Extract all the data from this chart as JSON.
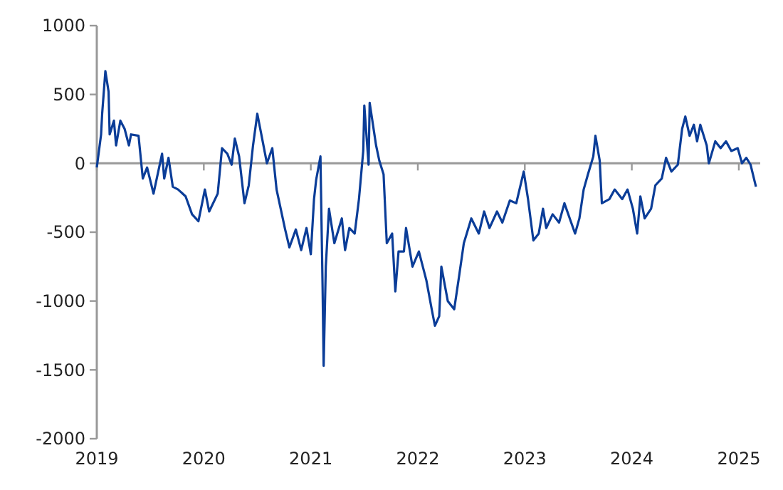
{
  "chart_data": {
    "type": "line",
    "color": "#0b3d98",
    "xlim": [
      2019,
      2025.2
    ],
    "xticks": [
      2019,
      2020,
      2021,
      2022,
      2023,
      2024,
      2025
    ],
    "ylim": [
      -2000,
      1000
    ],
    "yticks": [
      -2000,
      -1500,
      -1000,
      -500,
      0,
      500,
      1000
    ],
    "x": [
      2019.0,
      2019.04,
      2019.05,
      2019.08,
      2019.11,
      2019.12,
      2019.16,
      2019.18,
      2019.22,
      2019.26,
      2019.3,
      2019.32,
      2019.39,
      2019.43,
      2019.47,
      2019.53,
      2019.61,
      2019.63,
      2019.67,
      2019.71,
      2019.76,
      2019.83,
      2019.89,
      2019.95,
      2020.01,
      2020.05,
      2020.13,
      2020.17,
      2020.22,
      2020.26,
      2020.29,
      2020.33,
      2020.38,
      2020.42,
      2020.46,
      2020.5,
      2020.55,
      2020.59,
      2020.64,
      2020.68,
      2020.76,
      2020.8,
      2020.86,
      2020.91,
      2020.96,
      2021.0,
      2021.03,
      2021.05,
      2021.09,
      2021.11,
      2021.12,
      2021.14,
      2021.17,
      2021.22,
      2021.29,
      2021.32,
      2021.36,
      2021.41,
      2021.45,
      2021.49,
      2021.5,
      2021.54,
      2021.55,
      2021.61,
      2021.64,
      2021.68,
      2021.71,
      2021.76,
      2021.79,
      2021.82,
      2021.87,
      2021.89,
      2021.95,
      2022.01,
      2022.08,
      2022.13,
      2022.16,
      2022.2,
      2022.22,
      2022.28,
      2022.34,
      2022.38,
      2022.43,
      2022.5,
      2022.57,
      2022.62,
      2022.67,
      2022.74,
      2022.79,
      2022.86,
      2022.92,
      2022.99,
      2023.03,
      2023.08,
      2023.13,
      2023.17,
      2023.2,
      2023.26,
      2023.32,
      2023.37,
      2023.42,
      2023.47,
      2023.51,
      2023.55,
      2023.59,
      2023.64,
      2023.66,
      2023.7,
      2023.72,
      2023.79,
      2023.84,
      2023.91,
      2023.96,
      2024.01,
      2024.05,
      2024.08,
      2024.12,
      2024.18,
      2024.22,
      2024.28,
      2024.32,
      2024.37,
      2024.43,
      2024.47,
      2024.5,
      2024.54,
      2024.58,
      2024.61,
      2024.64,
      2024.7,
      2024.72,
      2024.78,
      2024.83,
      2024.88,
      2024.93,
      2024.99,
      2025.03,
      2025.07,
      2025.11,
      2025.16
    ],
    "values": [
      -30,
      210,
      360,
      670,
      520,
      210,
      310,
      130,
      310,
      250,
      130,
      210,
      200,
      -110,
      -30,
      -220,
      70,
      -110,
      40,
      -170,
      -190,
      -240,
      -370,
      -420,
      -190,
      -350,
      -220,
      110,
      70,
      -10,
      180,
      50,
      -290,
      -160,
      130,
      360,
      160,
      0,
      110,
      -190,
      -480,
      -610,
      -480,
      -630,
      -470,
      -660,
      -260,
      -120,
      50,
      -900,
      -1470,
      -750,
      -330,
      -580,
      -400,
      -630,
      -470,
      -510,
      -260,
      90,
      420,
      -10,
      440,
      130,
      20,
      -80,
      -580,
      -510,
      -930,
      -640,
      -640,
      -470,
      -750,
      -640,
      -850,
      -1060,
      -1180,
      -1110,
      -750,
      -1000,
      -1060,
      -850,
      -580,
      -400,
      -510,
      -350,
      -470,
      -350,
      -430,
      -270,
      -290,
      -60,
      -260,
      -560,
      -510,
      -330,
      -470,
      -370,
      -430,
      -290,
      -400,
      -510,
      -400,
      -190,
      -80,
      50,
      200,
      20,
      -290,
      -260,
      -190,
      -260,
      -190,
      -330,
      -510,
      -240,
      -400,
      -330,
      -160,
      -110,
      40,
      -60,
      -10,
      250,
      340,
      200,
      280,
      160,
      280,
      130,
      0,
      160,
      110,
      160,
      90,
      110,
      0,
      40,
      -10,
      -170
    ]
  }
}
